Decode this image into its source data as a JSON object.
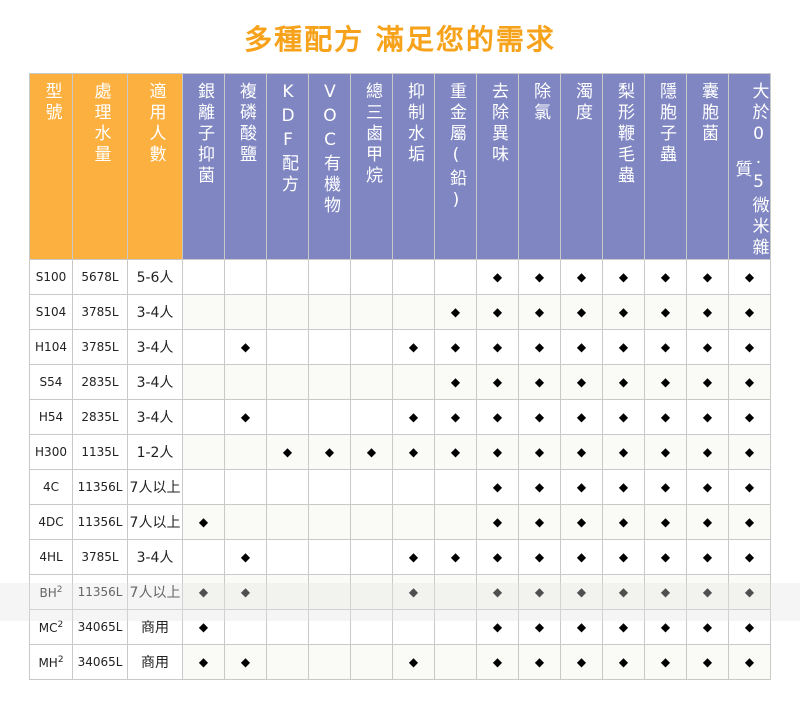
{
  "title": "多種配方  滿足您的需求",
  "headers": {
    "model": "型號",
    "capacity": "處理水量",
    "people": "適用人數",
    "features": [
      "銀離子抑菌",
      "複磷酸鹽",
      "KDF配方",
      "VOC有機物",
      "總三鹵甲烷",
      "抑制水垢",
      "重金屬(鉛)",
      "去除異味",
      "除氯",
      "濁度",
      "梨形鞭毛蟲",
      "隱胞子蟲",
      "囊胞菌",
      "大於0.5微米雜質"
    ]
  },
  "rows": [
    {
      "model": "S100",
      "sup": "",
      "capacity": "5678L",
      "people": "5-6人",
      "marks": [
        0,
        0,
        0,
        0,
        0,
        0,
        0,
        1,
        1,
        1,
        1,
        1,
        1,
        1
      ]
    },
    {
      "model": "S104",
      "sup": "",
      "capacity": "3785L",
      "people": "3-4人",
      "marks": [
        0,
        0,
        0,
        0,
        0,
        0,
        1,
        1,
        1,
        1,
        1,
        1,
        1,
        1
      ]
    },
    {
      "model": "H104",
      "sup": "",
      "capacity": "3785L",
      "people": "3-4人",
      "marks": [
        0,
        1,
        0,
        0,
        0,
        1,
        1,
        1,
        1,
        1,
        1,
        1,
        1,
        1
      ]
    },
    {
      "model": "S54",
      "sup": "",
      "capacity": "2835L",
      "people": "3-4人",
      "marks": [
        0,
        0,
        0,
        0,
        0,
        0,
        1,
        1,
        1,
        1,
        1,
        1,
        1,
        1
      ]
    },
    {
      "model": "H54",
      "sup": "",
      "capacity": "2835L",
      "people": "3-4人",
      "marks": [
        0,
        1,
        0,
        0,
        0,
        1,
        1,
        1,
        1,
        1,
        1,
        1,
        1,
        1
      ]
    },
    {
      "model": "H300",
      "sup": "",
      "capacity": "1135L",
      "people": "1-2人",
      "marks": [
        0,
        0,
        1,
        1,
        1,
        1,
        1,
        1,
        1,
        1,
        1,
        1,
        1,
        1
      ]
    },
    {
      "model": "4C",
      "sup": "",
      "capacity": "11356L",
      "people": "7人以上",
      "marks": [
        0,
        0,
        0,
        0,
        0,
        0,
        0,
        1,
        1,
        1,
        1,
        1,
        1,
        1
      ]
    },
    {
      "model": "4DC",
      "sup": "",
      "capacity": "11356L",
      "people": "7人以上",
      "marks": [
        1,
        0,
        0,
        0,
        0,
        0,
        0,
        1,
        1,
        1,
        1,
        1,
        1,
        1
      ]
    },
    {
      "model": "4HL",
      "sup": "",
      "capacity": "3785L",
      "people": "3-4人",
      "marks": [
        0,
        1,
        0,
        0,
        0,
        1,
        1,
        1,
        1,
        1,
        1,
        1,
        1,
        1
      ]
    },
    {
      "model": "BH",
      "sup": "2",
      "capacity": "11356L",
      "people": "7人以上",
      "marks": [
        1,
        1,
        0,
        0,
        0,
        1,
        0,
        1,
        1,
        1,
        1,
        1,
        1,
        1
      ]
    },
    {
      "model": "MC",
      "sup": "2",
      "capacity": "34065L",
      "people": "商用",
      "marks": [
        1,
        0,
        0,
        0,
        0,
        0,
        0,
        1,
        1,
        1,
        1,
        1,
        1,
        1
      ]
    },
    {
      "model": "MH",
      "sup": "2",
      "capacity": "34065L",
      "people": "商用",
      "marks": [
        1,
        1,
        0,
        0,
        0,
        1,
        0,
        1,
        1,
        1,
        1,
        1,
        1,
        1
      ]
    }
  ],
  "mark_symbol": "◆",
  "colors": {
    "title": "#f7a21b",
    "header_orange": "#fbb040",
    "header_purple": "#7f86c2"
  }
}
